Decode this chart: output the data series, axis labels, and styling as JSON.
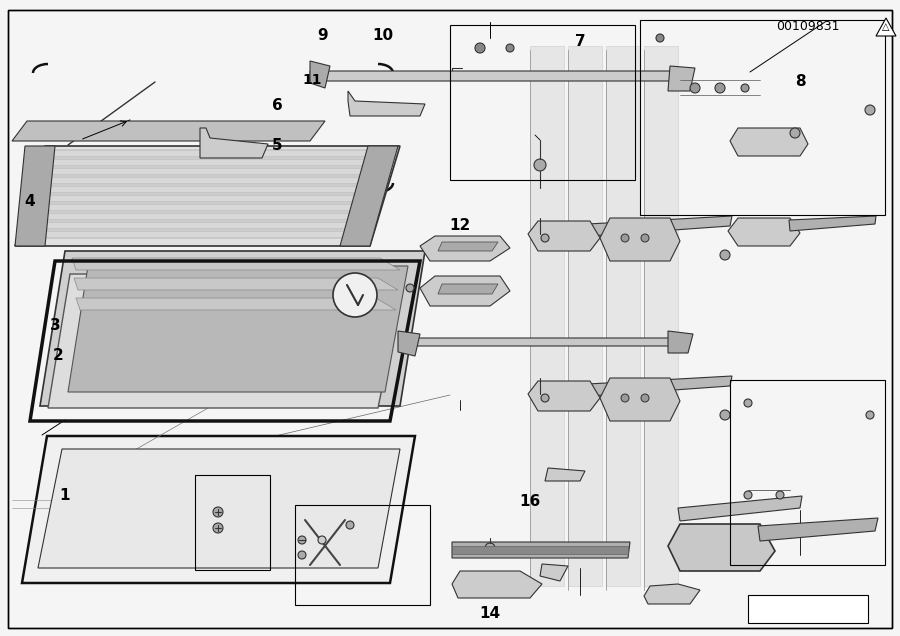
{
  "part_number": "00109831",
  "bg_color": "#f5f5f5",
  "border_color": "#000000",
  "line_color": "#000000",
  "fill_light": "#e8e8e8",
  "fill_mid": "#cccccc",
  "fill_dark": "#aaaaaa",
  "label_fontsize": 10,
  "label_bold": true,
  "annotation_color": "#000000",
  "figsize": [
    9.0,
    6.36
  ],
  "dpi": 100
}
